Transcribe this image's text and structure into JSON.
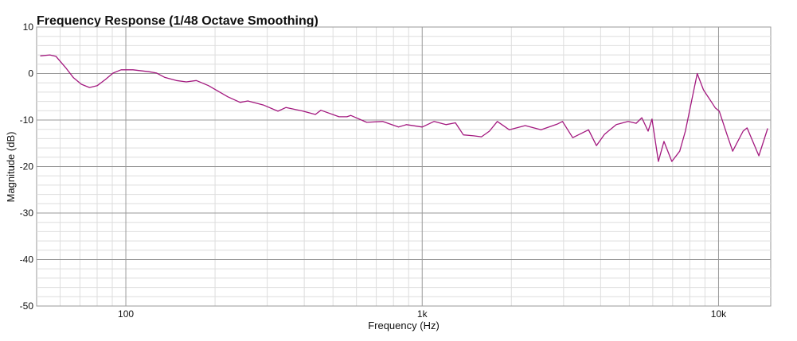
{
  "chart_data": {
    "type": "line",
    "title": "Frequency Response (1/48 Octave Smoothing)",
    "x_label": "Frequency (Hz)",
    "y_label": "Magnitude (dB)",
    "x_scale": "log",
    "grid": true,
    "xlim": [
      50,
      15000
    ],
    "ylim": [
      -50,
      10
    ],
    "xticks": [
      100,
      {
        "value": 1000,
        "label": "1k"
      },
      {
        "value": 10000,
        "label": "10k"
      }
    ],
    "yticks": [
      10,
      0,
      -10,
      -20,
      -30,
      -40,
      -50
    ],
    "minor_yticks": [
      8,
      6,
      4,
      2,
      -2,
      -4,
      -6,
      -8,
      -12,
      -14,
      -16,
      -18,
      -22,
      -24,
      -26,
      -28,
      -32,
      -34,
      -36,
      -38,
      -42,
      -44,
      -46,
      -48
    ],
    "series": [
      {
        "color": "#a3197f",
        "x": [
          51.4,
          55.4,
          58.1,
          62.6,
          66.6,
          70.8,
          75.4,
          80.1,
          85.2,
          90.6,
          96.4,
          105.7,
          119.5,
          127,
          135,
          148,
          160,
          173,
          190,
          221,
          243,
          258,
          292,
          326,
          347,
          397,
          436,
          455,
          524,
          557,
          574,
          650,
          735,
          832,
          885,
          1000,
          1096,
          1203,
          1295,
          1377,
          1493,
          1585,
          1686,
          1793,
          1968,
          2228,
          2518,
          2679,
          2849,
          2975,
          3221,
          3642,
          3873,
          4120,
          4518,
          4953,
          5272,
          5508,
          5786,
          5962,
          6266,
          6544,
          6955,
          7396,
          7728,
          8472,
          8895,
          9463,
          9755,
          10059,
          10690,
          11160,
          12100,
          12480,
          13680,
          14650
        ],
        "values": [
          3.8,
          4.0,
          3.7,
          1.3,
          -0.9,
          -2.3,
          -3.0,
          -2.6,
          -1.3,
          0.1,
          0.8,
          0.8,
          0.4,
          0.1,
          -0.8,
          -1.5,
          -1.8,
          -1.5,
          -2.6,
          -5.0,
          -6.2,
          -5.9,
          -6.8,
          -8.1,
          -7.3,
          -8.1,
          -8.8,
          -7.9,
          -9.3,
          -9.3,
          -9.0,
          -10.5,
          -10.3,
          -11.5,
          -11.0,
          -11.5,
          -10.3,
          -11.0,
          -10.6,
          -13.2,
          -13.4,
          -13.6,
          -12.4,
          -10.3,
          -12.1,
          -11.2,
          -12.1,
          -11.5,
          -10.9,
          -10.3,
          -13.8,
          -12.1,
          -15.5,
          -13.1,
          -11.0,
          -10.3,
          -10.7,
          -9.5,
          -12.4,
          -9.8,
          -18.9,
          -14.6,
          -18.9,
          -16.7,
          -12.4,
          0.0,
          -3.5,
          -6.1,
          -7.4,
          -8.1,
          -13.2,
          -16.7,
          -12.4,
          -11.7,
          -17.7,
          -11.8
        ]
      }
    ]
  }
}
